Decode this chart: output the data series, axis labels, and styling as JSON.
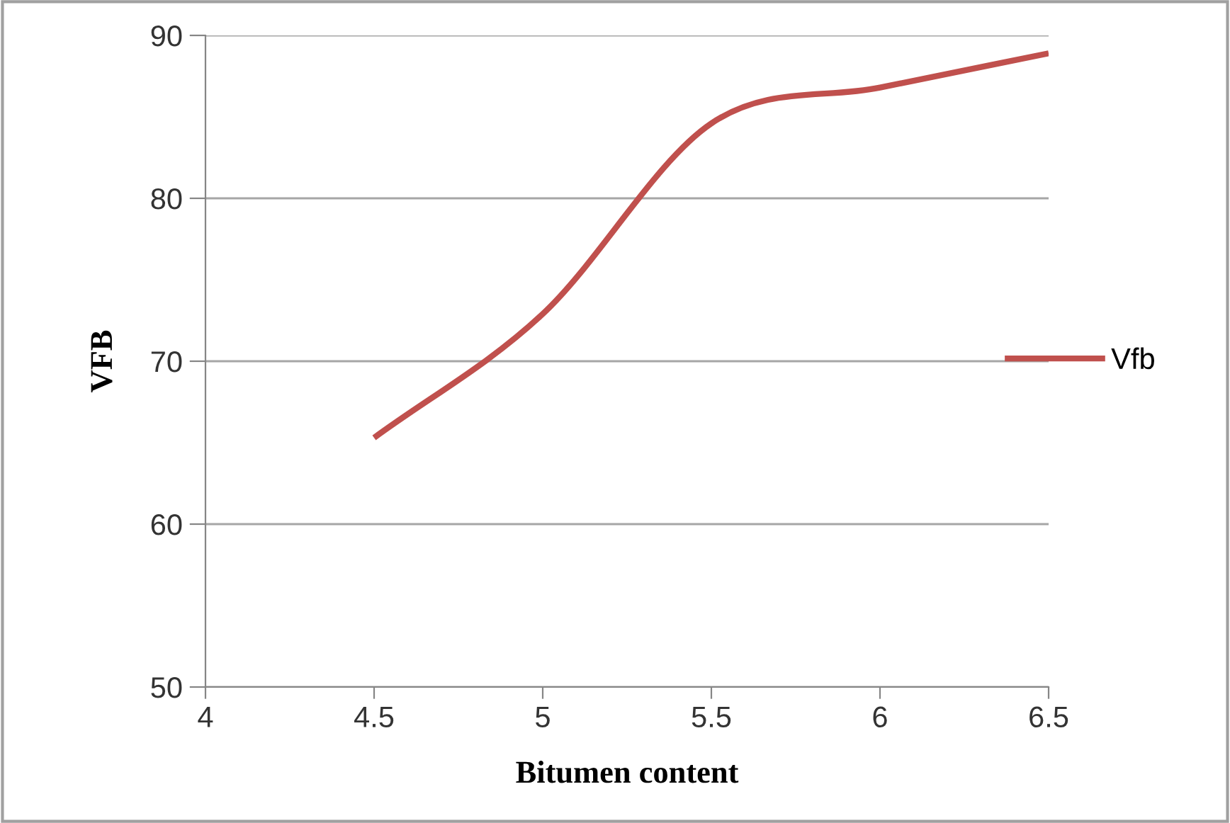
{
  "chart_data": {
    "type": "line",
    "xlabel": "Bitumen content",
    "ylabel": "VFB",
    "x": [
      4.5,
      5,
      5.5,
      6,
      6.5
    ],
    "series": [
      {
        "name": "Vfb",
        "color": "#c0504d",
        "values": [
          65.3,
          72.9,
          84.6,
          86.8,
          88.9
        ]
      }
    ],
    "xlim": [
      4,
      6.5
    ],
    "xticks": [
      4,
      4.5,
      5,
      5.5,
      6,
      6.5
    ],
    "ylim": [
      50,
      90
    ],
    "yticks": [
      50,
      60,
      70,
      80,
      90
    ],
    "grid": "y",
    "legend": "right",
    "marker": "none",
    "line_style": "solid"
  }
}
